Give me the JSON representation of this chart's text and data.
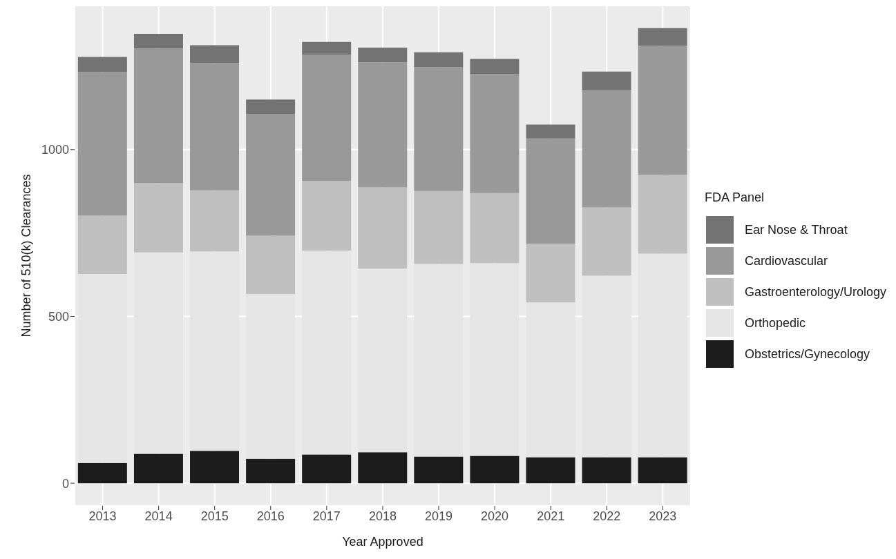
{
  "chart_data": {
    "type": "bar",
    "stacked": true,
    "xlabel": "Year Approved",
    "ylabel": "Number of 510(k) Clearances",
    "legend_title": "FDA Panel",
    "legend": "right",
    "grid": true,
    "categories": [
      "2013",
      "2014",
      "2015",
      "2016",
      "2017",
      "2018",
      "2019",
      "2020",
      "2021",
      "2022",
      "2023"
    ],
    "ylim": [
      -68,
      1432
    ],
    "yticks": [
      0,
      500,
      1000
    ],
    "series": [
      {
        "name": "Obstetrics/Gynecology",
        "color": "#1c1c1c",
        "values": [
          61,
          88,
          97,
          73,
          86,
          93,
          80,
          82,
          78,
          78,
          78
        ]
      },
      {
        "name": "Orthopedic",
        "color": "#e5e5e5",
        "values": [
          566,
          604,
          598,
          494,
          611,
          550,
          577,
          578,
          464,
          544,
          610
        ]
      },
      {
        "name": "Gastroenterology/Urology",
        "color": "#bfbfbf",
        "values": [
          175,
          208,
          183,
          175,
          209,
          244,
          219,
          210,
          176,
          205,
          236
        ]
      },
      {
        "name": "Cardiovascular",
        "color": "#999999",
        "values": [
          431,
          403,
          382,
          365,
          379,
          375,
          371,
          357,
          315,
          351,
          387
        ]
      },
      {
        "name": "Ear Nose & Throat",
        "color": "#737373",
        "values": [
          45,
          44,
          53,
          43,
          38,
          44,
          45,
          45,
          42,
          56,
          53
        ]
      }
    ]
  }
}
